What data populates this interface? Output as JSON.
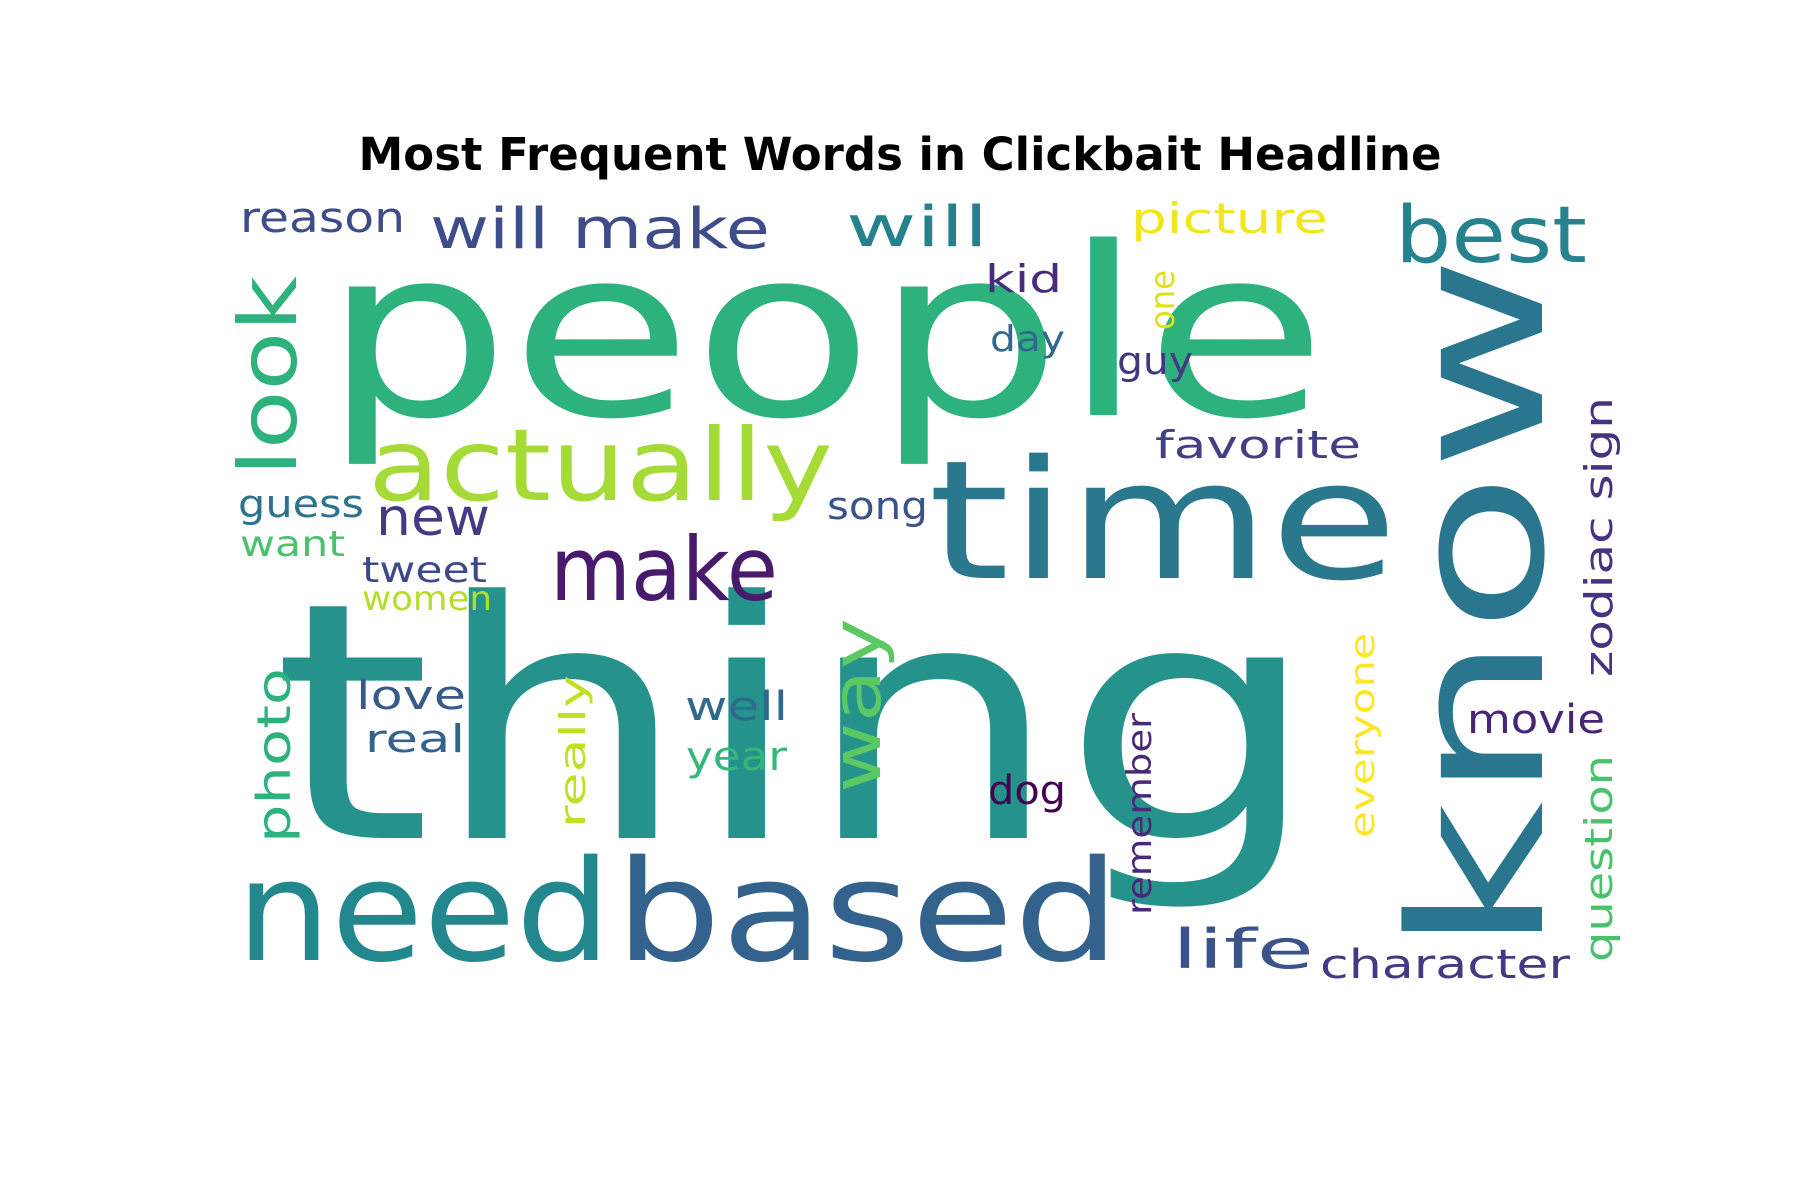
{
  "title": "Most Frequent Words in Clickbait Headline",
  "words": [
    {
      "text": "thing",
      "color": "#26928c"
    },
    {
      "text": "people",
      "color": "#2db27d"
    },
    {
      "text": "know",
      "color": "#2a768e"
    },
    {
      "text": "time",
      "color": "#2a788e"
    },
    {
      "text": "based",
      "color": "#33628d"
    },
    {
      "text": "need",
      "color": "#23888e"
    },
    {
      "text": "actually",
      "color": "#a5db36"
    },
    {
      "text": "make",
      "color": "#481a6c"
    },
    {
      "text": "look",
      "color": "#2db27d"
    },
    {
      "text": "best",
      "color": "#26828e"
    },
    {
      "text": "will make",
      "color": "#3e4c8a"
    },
    {
      "text": "will",
      "color": "#27808e"
    },
    {
      "text": "way",
      "color": "#5cc863"
    },
    {
      "text": "reason",
      "color": "#3e4c8a"
    },
    {
      "text": "picture",
      "color": "#f1e51d"
    },
    {
      "text": "life",
      "color": "#3b528b"
    },
    {
      "text": "character",
      "color": "#443983"
    },
    {
      "text": "new",
      "color": "#443a83"
    },
    {
      "text": "photo",
      "color": "#2db27d"
    },
    {
      "text": "zodiac sign",
      "color": "#46327e"
    },
    {
      "text": "favorite",
      "color": "#433e85"
    },
    {
      "text": "movie",
      "color": "#482677"
    },
    {
      "text": "question",
      "color": "#4ac16d"
    },
    {
      "text": "everyone",
      "color": "#fde725"
    },
    {
      "text": "remember",
      "color": "#482979"
    },
    {
      "text": "love",
      "color": "#38598c"
    },
    {
      "text": "real",
      "color": "#33638d"
    },
    {
      "text": "guess",
      "color": "#2c738e"
    },
    {
      "text": "want",
      "color": "#4ac16d"
    },
    {
      "text": "tweet",
      "color": "#3e4989"
    },
    {
      "text": "women",
      "color": "#b5de2b"
    },
    {
      "text": "song",
      "color": "#3b528b"
    },
    {
      "text": "well",
      "color": "#31688e"
    },
    {
      "text": "year",
      "color": "#35b779"
    },
    {
      "text": "really",
      "color": "#c2df23"
    },
    {
      "text": "dog",
      "color": "#440154"
    },
    {
      "text": "kid",
      "color": "#472c7a"
    },
    {
      "text": "day",
      "color": "#31688e"
    },
    {
      "text": "one",
      "color": "#dde318"
    },
    {
      "text": "guy",
      "color": "#453882"
    }
  ]
}
